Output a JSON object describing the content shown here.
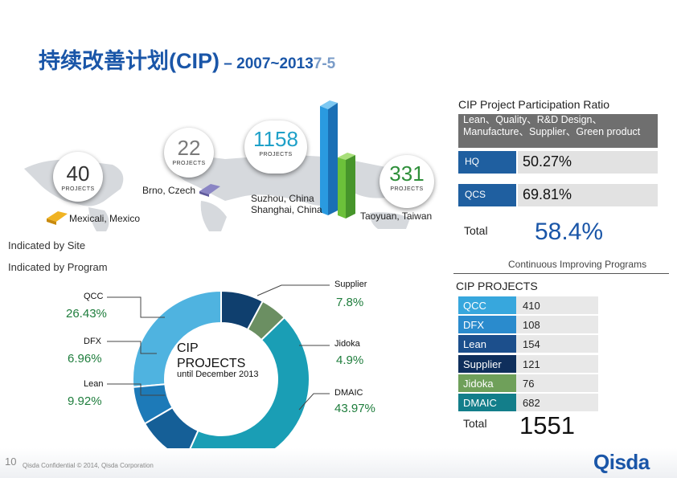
{
  "header": {
    "title": "持续改善计划(CIP)",
    "dash": " – ",
    "range": "2007~2013",
    "date": "7-5"
  },
  "participation": {
    "title": "CIP Project Participation Ratio",
    "scope": "Lean、Quality、R&D Design、Manufacture、Supplier、Green product",
    "rows": [
      {
        "label": "HQ",
        "value": "50.27%",
        "ratio": 50.27
      },
      {
        "label": "QCS",
        "value": "69.81%",
        "ratio": 69.81
      }
    ],
    "total_label": "Total",
    "total_value": "58.4%"
  },
  "sites": {
    "caption": "Indicated by Site",
    "projects_word": "PROJECTS",
    "items": [
      {
        "count": "40",
        "name": "Mexicali, Mexico"
      },
      {
        "count": "22",
        "name": "Brno, Czech"
      },
      {
        "count": "1158",
        "name": "Suzhou, China\nShanghai, China"
      },
      {
        "count": "331",
        "name": "Taoyuan, Taiwan"
      }
    ]
  },
  "programs": {
    "caption": "Indicated by Program",
    "continuous": "Continuous Improving Programs",
    "center_title": "CIP PROJECTS",
    "center_sub": "until December 2013",
    "slices": [
      {
        "name": "QCC",
        "pct": "26.43%",
        "value": 26.43,
        "color": "#4fb3e0"
      },
      {
        "name": "DFX",
        "pct": "6.96%",
        "value": 6.96,
        "color": "#1d7ab8"
      },
      {
        "name": "Lean",
        "pct": "9.92%",
        "value": 9.92,
        "color": "#155f97"
      },
      {
        "name": "Supplier",
        "pct": "7.8%",
        "value": 7.8,
        "color": "#0f3f6e"
      },
      {
        "name": "Jidoka",
        "pct": "4.9%",
        "value": 4.9,
        "color": "#6b8f62"
      },
      {
        "name": "DMAIC",
        "pct": "43.97%",
        "value": 43.97,
        "color": "#1a9eb5"
      }
    ]
  },
  "cip_table": {
    "title": "CIP PROJECTS",
    "rows": [
      {
        "label": "QCC",
        "value": "410",
        "color": "#37a7dd"
      },
      {
        "label": "DFX",
        "value": "108",
        "color": "#2a8bcd"
      },
      {
        "label": "Lean",
        "value": "154",
        "color": "#1c4f8c"
      },
      {
        "label": "Supplier",
        "value": "121",
        "color": "#0f2f5c"
      },
      {
        "label": "Jidoka",
        "value": "76",
        "color": "#6fa05a"
      },
      {
        "label": "DMAIC",
        "value": "682",
        "color": "#137e8a"
      }
    ],
    "total_label": "Total",
    "total_value": "1551"
  },
  "footer": {
    "page": "10",
    "confidential": "Qisda Confidential © 2014, Qisda Corporation",
    "logo": "Qisda"
  }
}
